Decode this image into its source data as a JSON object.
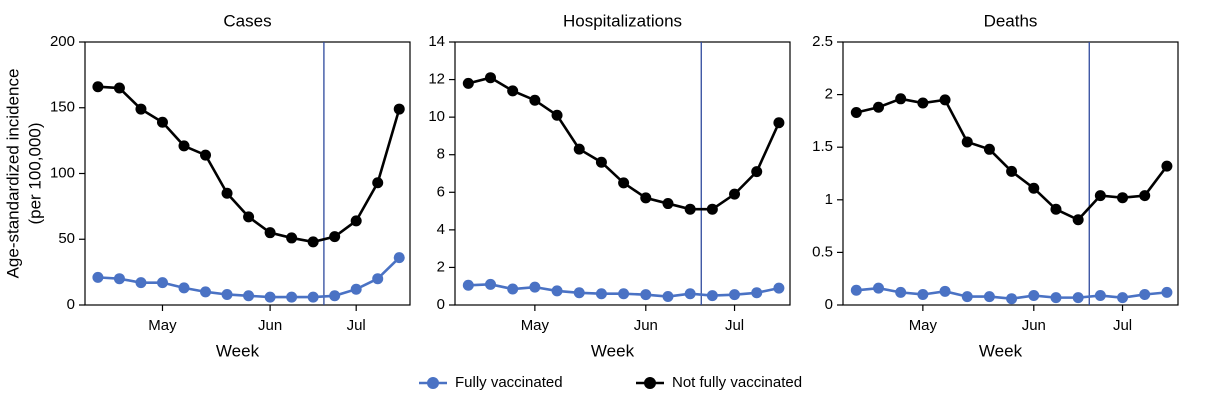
{
  "chart_data": [
    {
      "type": "line",
      "title": "Cases",
      "y_label": "Age-standardized incidence",
      "y_label_2": "(per 100,000)",
      "x_label": "Week",
      "categories": [
        null,
        null,
        null,
        "May",
        null,
        null,
        null,
        null,
        "Jun",
        null,
        null,
        null,
        "Jul",
        null,
        null
      ],
      "vline_x": 10.5,
      "ylim": [
        0,
        200
      ],
      "yticks": [
        0,
        50,
        100,
        150,
        200
      ],
      "series": [
        {
          "name": "Fully vaccinated",
          "color": "#4a72c4",
          "values": [
            21,
            20,
            17,
            17,
            13,
            10,
            8,
            7,
            6,
            6,
            6,
            7,
            12,
            20,
            36
          ]
        },
        {
          "name": "Not fully vaccinated",
          "color": "#000000",
          "values": [
            166,
            165,
            149,
            139,
            121,
            114,
            85,
            67,
            55,
            51,
            48,
            52,
            64,
            93,
            149
          ]
        }
      ]
    },
    {
      "type": "line",
      "title": "Hospitalizations",
      "x_label": "Week",
      "categories": [
        null,
        null,
        null,
        "May",
        null,
        null,
        null,
        null,
        "Jun",
        null,
        null,
        null,
        "Jul",
        null,
        null
      ],
      "vline_x": 10.5,
      "ylim": [
        0,
        14
      ],
      "yticks": [
        0,
        2,
        4,
        6,
        8,
        10,
        12,
        14
      ],
      "series": [
        {
          "name": "Fully vaccinated",
          "color": "#4a72c4",
          "values": [
            1.05,
            1.1,
            0.85,
            0.95,
            0.75,
            0.65,
            0.6,
            0.6,
            0.55,
            0.45,
            0.6,
            0.5,
            0.55,
            0.65,
            0.9
          ]
        },
        {
          "name": "Not fully vaccinated",
          "color": "#000000",
          "values": [
            11.8,
            12.1,
            11.4,
            10.9,
            10.1,
            8.3,
            7.6,
            6.5,
            5.7,
            5.4,
            5.1,
            5.1,
            5.9,
            7.1,
            9.7
          ]
        }
      ]
    },
    {
      "type": "line",
      "title": "Deaths",
      "x_label": "Week",
      "categories": [
        null,
        null,
        null,
        "May",
        null,
        null,
        null,
        null,
        "Jun",
        null,
        null,
        null,
        "Jul",
        null,
        null
      ],
      "vline_x": 10.5,
      "ylim": [
        0,
        2.5
      ],
      "yticks": [
        0,
        0.5,
        1,
        1.5,
        2,
        2.5
      ],
      "series": [
        {
          "name": "Fully vaccinated",
          "color": "#4a72c4",
          "values": [
            0.14,
            0.16,
            0.12,
            0.1,
            0.13,
            0.08,
            0.08,
            0.06,
            0.09,
            0.07,
            0.07,
            0.09,
            0.07,
            0.1,
            0.12
          ]
        },
        {
          "name": "Not fully vaccinated",
          "color": "#000000",
          "values": [
            1.83,
            1.88,
            1.96,
            1.92,
            1.95,
            1.55,
            1.48,
            1.27,
            1.11,
            0.91,
            0.81,
            1.04,
            1.02,
            1.04,
            1.32
          ]
        }
      ]
    }
  ]
}
